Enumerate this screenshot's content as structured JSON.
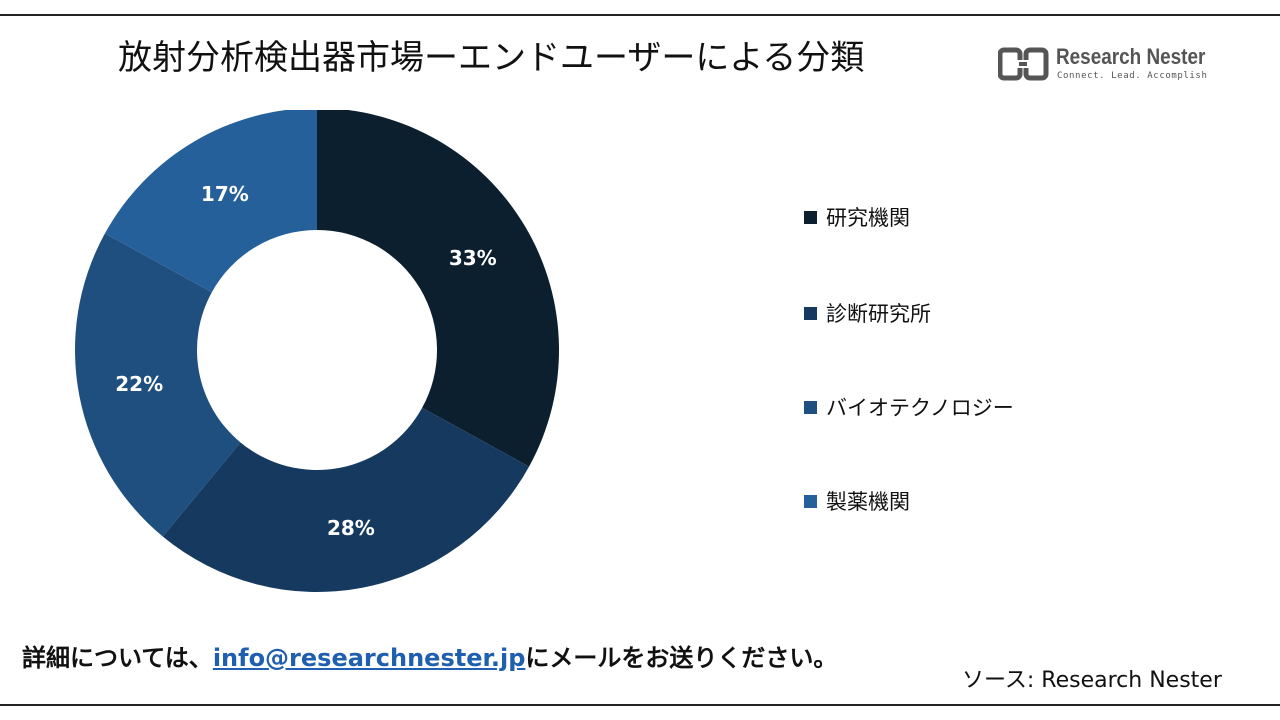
{
  "title": "放射分析検出器市場ーエンドユーザーによる分類",
  "logo": {
    "name": "Research Nester",
    "tagline": "Connect. Lead. Accomplish"
  },
  "chart_data": {
    "type": "pie",
    "variant": "donut",
    "title": "放射分析検出器市場ーエンドユーザーによる分類",
    "categories": [
      "研究機関",
      "診断研究所",
      "バイオテクノロジー",
      "製薬機関"
    ],
    "values": [
      33,
      28,
      22,
      17
    ],
    "labels": [
      "33%",
      "28%",
      "22%",
      "17%"
    ],
    "colors": [
      "#0c1f2f",
      "#163a5f",
      "#1f4f7f",
      "#25609a"
    ],
    "legend_position": "right"
  },
  "footer": {
    "prefix": "詳細については、",
    "email": "info@researchnester.jp",
    "suffix": "にメールをお送りください。"
  },
  "source": "ソース: Research Nester"
}
